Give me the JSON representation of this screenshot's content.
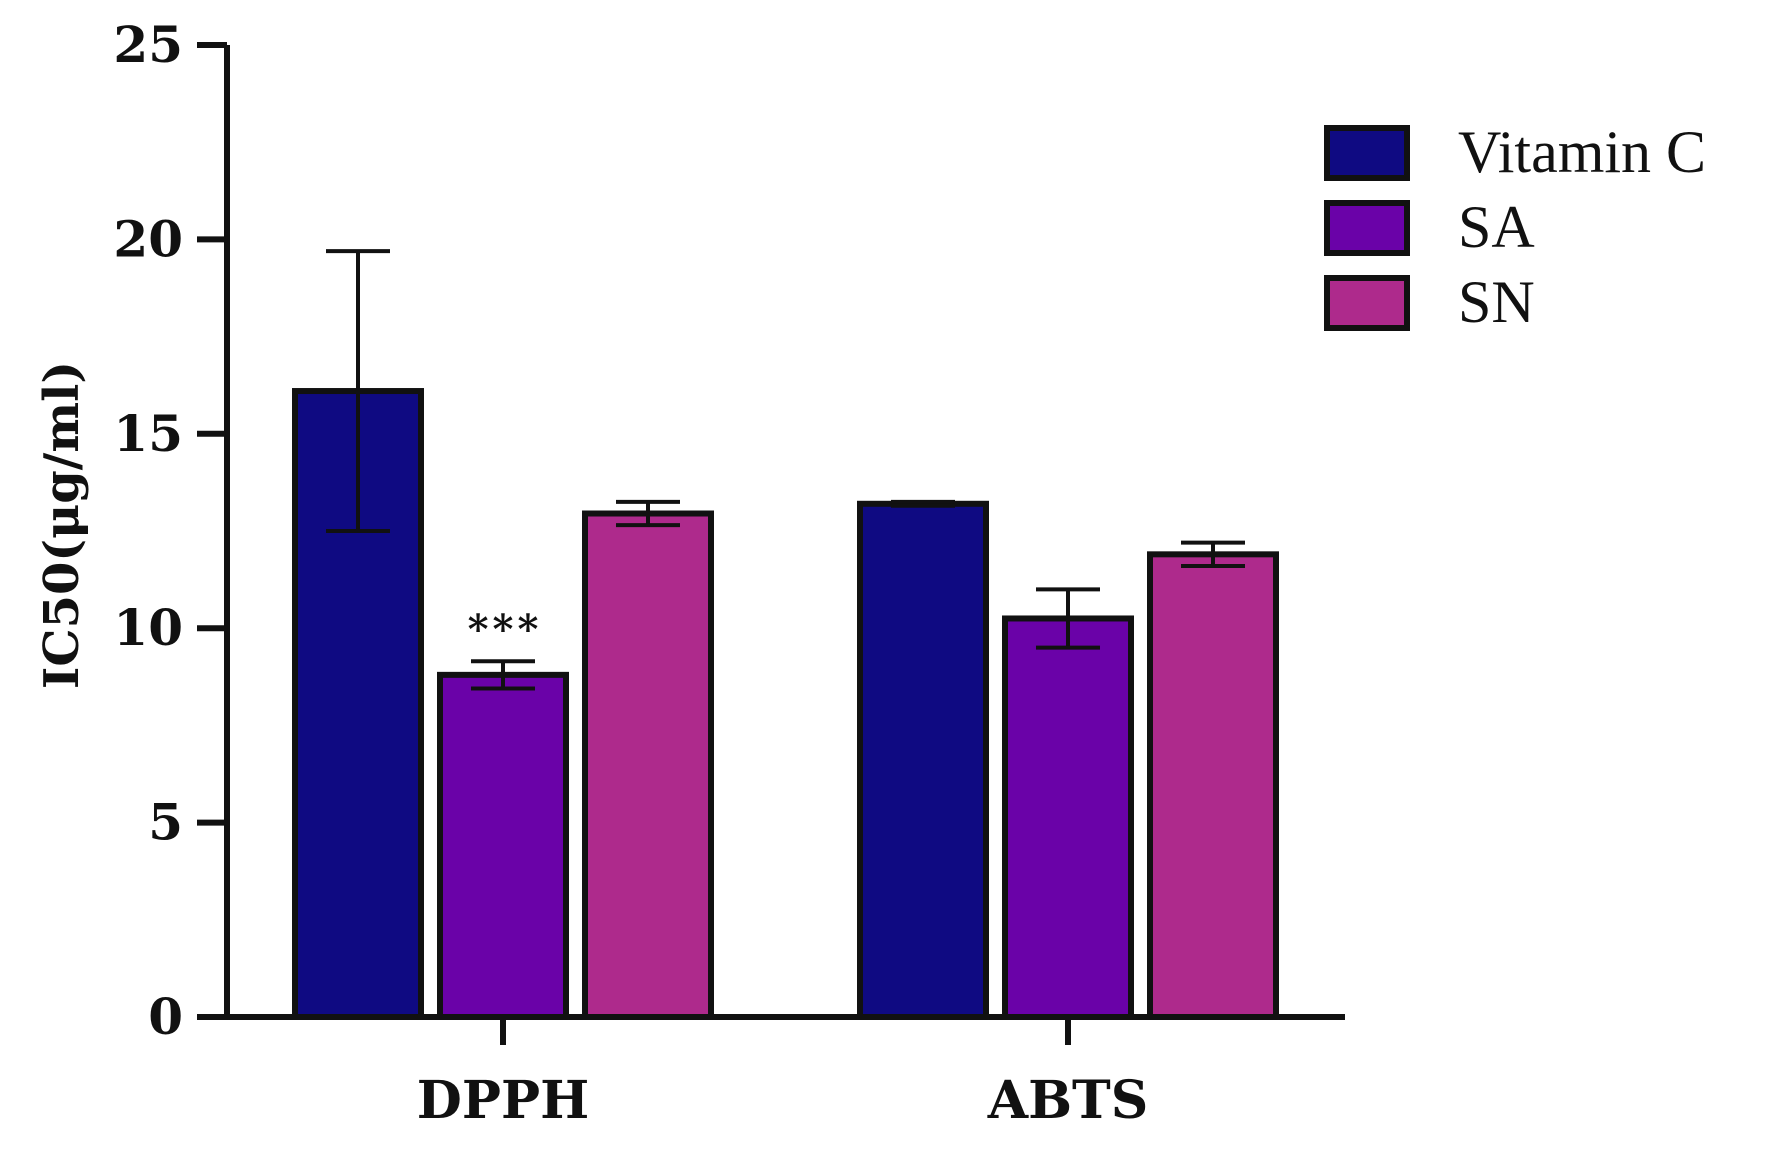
{
  "chart_data": {
    "type": "bar",
    "title": "",
    "xlabel": "",
    "ylabel": "IC50(μg/ml)",
    "ylim": [
      0,
      25
    ],
    "yticks": [
      0,
      5,
      10,
      15,
      20,
      25
    ],
    "categories": [
      "DPPH",
      "ABTS"
    ],
    "series": [
      {
        "name": "Vitamin C",
        "color": "#0f0a82",
        "values": [
          16.1,
          13.2
        ],
        "errors": [
          3.6,
          0.05
        ]
      },
      {
        "name": "SA",
        "color": "#6a02a8",
        "values": [
          8.8,
          10.25
        ],
        "errors": [
          0.35,
          0.75
        ]
      },
      {
        "name": "SN",
        "color": "#ae2a8c",
        "values": [
          12.95,
          11.9
        ],
        "errors": [
          0.3,
          0.3
        ]
      }
    ],
    "annotations": [
      {
        "category": "DPPH",
        "series": "SA",
        "text": "***"
      }
    ],
    "legend_position": "top-right",
    "grid": false
  }
}
